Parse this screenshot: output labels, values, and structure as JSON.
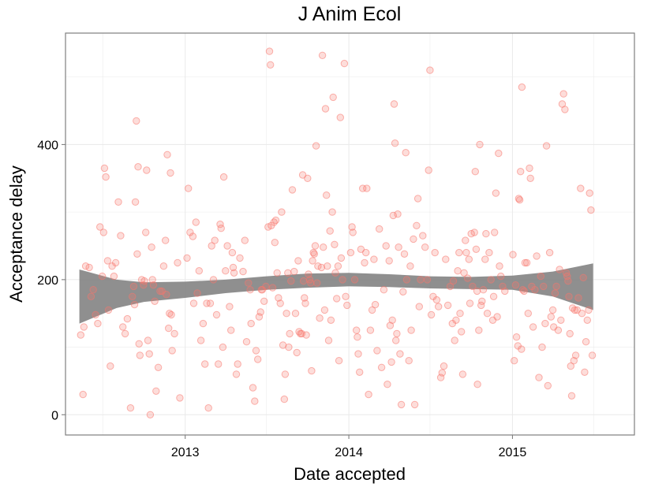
{
  "chart_data": {
    "type": "scatter",
    "title": "J Anim Ecol",
    "xlabel": "Date accepted",
    "ylabel": "Acceptance delay",
    "x_ticks": [
      "2013",
      "2014",
      "2015"
    ],
    "y_ticks": [
      0,
      200,
      400
    ],
    "xlim": [
      "2012-04-09",
      "2015-09-30"
    ],
    "ylim": [
      -30,
      565
    ],
    "grid": true,
    "legend": "none",
    "colors": {
      "points": "#f8766d",
      "band": "#7f7f7f",
      "panel_border": "#7f7f7f",
      "grid": "#ebebeb"
    },
    "smooth_band": {
      "x": [
        "2012-05-10",
        "2012-08-01",
        "2012-10-01",
        "2013-01-01",
        "2013-04-01",
        "2013-07-01",
        "2013-10-01",
        "2014-01-01",
        "2014-04-01",
        "2014-07-01",
        "2014-10-01",
        "2015-01-01",
        "2015-04-01",
        "2015-06-30"
      ],
      "lower": [
        135,
        158,
        167,
        173,
        180,
        185,
        188,
        190,
        189,
        187,
        186,
        185,
        175,
        155
      ],
      "upper": [
        215,
        200,
        196,
        197,
        200,
        205,
        209,
        210,
        208,
        205,
        204,
        206,
        212,
        224
      ]
    },
    "points": [
      [
        "2012-05-13",
        118
      ],
      [
        "2012-05-18",
        30
      ],
      [
        "2012-05-20",
        130
      ],
      [
        "2012-05-24",
        220
      ],
      [
        "2012-06-01",
        218
      ],
      [
        "2012-06-05",
        175
      ],
      [
        "2012-06-10",
        185
      ],
      [
        "2012-06-15",
        148
      ],
      [
        "2012-06-20",
        135
      ],
      [
        "2012-06-25",
        278
      ],
      [
        "2012-06-30",
        205
      ],
      [
        "2012-07-03",
        270
      ],
      [
        "2012-07-05",
        365
      ],
      [
        "2012-07-08",
        352
      ],
      [
        "2012-07-12",
        228
      ],
      [
        "2012-07-14",
        155
      ],
      [
        "2012-07-18",
        72
      ],
      [
        "2012-07-22",
        220
      ],
      [
        "2012-07-26",
        205
      ],
      [
        "2012-07-30",
        225
      ],
      [
        "2012-08-05",
        315
      ],
      [
        "2012-08-10",
        265
      ],
      [
        "2012-08-15",
        130
      ],
      [
        "2012-08-20",
        120
      ],
      [
        "2012-08-25",
        142
      ],
      [
        "2012-09-01",
        10
      ],
      [
        "2012-09-05",
        175
      ],
      [
        "2012-09-08",
        190
      ],
      [
        "2012-09-10",
        163
      ],
      [
        "2012-09-12",
        315
      ],
      [
        "2012-09-14",
        435
      ],
      [
        "2012-09-16",
        238
      ],
      [
        "2012-09-18",
        367
      ],
      [
        "2012-09-20",
        105
      ],
      [
        "2012-09-22",
        88
      ],
      [
        "2012-09-26",
        200
      ],
      [
        "2012-09-30",
        192
      ],
      [
        "2012-10-02",
        198
      ],
      [
        "2012-10-05",
        270
      ],
      [
        "2012-10-07",
        362
      ],
      [
        "2012-10-10",
        110
      ],
      [
        "2012-10-13",
        90
      ],
      [
        "2012-10-15",
        0
      ],
      [
        "2012-10-18",
        248
      ],
      [
        "2012-10-20",
        200
      ],
      [
        "2012-10-22",
        192
      ],
      [
        "2012-10-25",
        168
      ],
      [
        "2012-10-28",
        35
      ],
      [
        "2012-11-02",
        70
      ],
      [
        "2012-11-06",
        183
      ],
      [
        "2012-11-10",
        183
      ],
      [
        "2012-11-14",
        220
      ],
      [
        "2012-11-18",
        258
      ],
      [
        "2012-11-20",
        178
      ],
      [
        "2012-11-22",
        385
      ],
      [
        "2012-11-25",
        128
      ],
      [
        "2012-11-27",
        150
      ],
      [
        "2012-11-29",
        358
      ],
      [
        "2012-12-01",
        148
      ],
      [
        "2012-12-03",
        95
      ],
      [
        "2012-12-08",
        120
      ],
      [
        "2012-12-15",
        225
      ],
      [
        "2012-12-20",
        25
      ],
      [
        "2013-01-05",
        232
      ],
      [
        "2013-01-08",
        335
      ],
      [
        "2013-01-12",
        270
      ],
      [
        "2013-01-18",
        264
      ],
      [
        "2013-01-20",
        165
      ],
      [
        "2013-01-25",
        285
      ],
      [
        "2013-01-28",
        180
      ],
      [
        "2013-02-01",
        213
      ],
      [
        "2013-02-05",
        110
      ],
      [
        "2013-02-10",
        135
      ],
      [
        "2013-02-14",
        75
      ],
      [
        "2013-02-18",
        165
      ],
      [
        "2013-02-22",
        10
      ],
      [
        "2013-02-26",
        165
      ],
      [
        "2013-03-01",
        250
      ],
      [
        "2013-03-05",
        200
      ],
      [
        "2013-03-08",
        258
      ],
      [
        "2013-03-12",
        148
      ],
      [
        "2013-03-16",
        75
      ],
      [
        "2013-03-20",
        282
      ],
      [
        "2013-03-22",
        276
      ],
      [
        "2013-03-26",
        100
      ],
      [
        "2013-03-28",
        352
      ],
      [
        "2013-04-01",
        213
      ],
      [
        "2013-04-05",
        250
      ],
      [
        "2013-04-10",
        160
      ],
      [
        "2013-04-13",
        125
      ],
      [
        "2013-04-16",
        240
      ],
      [
        "2013-04-18",
        218
      ],
      [
        "2013-04-20",
        210
      ],
      [
        "2013-04-25",
        60
      ],
      [
        "2013-04-28",
        75
      ],
      [
        "2013-05-03",
        232
      ],
      [
        "2013-05-10",
        212
      ],
      [
        "2013-05-14",
        258
      ],
      [
        "2013-05-18",
        108
      ],
      [
        "2013-05-22",
        195
      ],
      [
        "2013-05-26",
        185
      ],
      [
        "2013-05-28",
        135
      ],
      [
        "2013-06-01",
        40
      ],
      [
        "2013-06-05",
        20
      ],
      [
        "2013-06-08",
        95
      ],
      [
        "2013-06-12",
        82
      ],
      [
        "2013-06-15",
        145
      ],
      [
        "2013-06-18",
        152
      ],
      [
        "2013-06-20",
        185
      ],
      [
        "2013-06-22",
        185
      ],
      [
        "2013-06-26",
        168
      ],
      [
        "2013-06-30",
        190
      ],
      [
        "2013-07-05",
        278
      ],
      [
        "2013-07-08",
        538
      ],
      [
        "2013-07-10",
        518
      ],
      [
        "2013-07-12",
        280
      ],
      [
        "2013-07-15",
        188
      ],
      [
        "2013-07-18",
        285
      ],
      [
        "2013-07-20",
        255
      ],
      [
        "2013-07-22",
        288
      ],
      [
        "2013-07-25",
        210
      ],
      [
        "2013-07-28",
        173
      ],
      [
        "2013-08-01",
        165
      ],
      [
        "2013-08-04",
        300
      ],
      [
        "2013-08-07",
        103
      ],
      [
        "2013-08-10",
        23
      ],
      [
        "2013-08-12",
        60
      ],
      [
        "2013-08-15",
        150
      ],
      [
        "2013-08-18",
        210
      ],
      [
        "2013-08-20",
        100
      ],
      [
        "2013-08-22",
        120
      ],
      [
        "2013-08-25",
        198
      ],
      [
        "2013-08-28",
        333
      ],
      [
        "2013-09-01",
        212
      ],
      [
        "2013-09-04",
        150
      ],
      [
        "2013-09-07",
        92
      ],
      [
        "2013-09-10",
        228
      ],
      [
        "2013-09-12",
        123
      ],
      [
        "2013-09-15",
        120
      ],
      [
        "2013-09-18",
        120
      ],
      [
        "2013-09-20",
        355
      ],
      [
        "2013-09-22",
        198
      ],
      [
        "2013-09-24",
        173
      ],
      [
        "2013-09-26",
        165
      ],
      [
        "2013-09-28",
        118
      ],
      [
        "2013-10-01",
        350
      ],
      [
        "2013-10-03",
        208
      ],
      [
        "2013-10-06",
        200
      ],
      [
        "2013-10-08",
        195
      ],
      [
        "2013-10-10",
        65
      ],
      [
        "2013-10-12",
        228
      ],
      [
        "2013-10-14",
        240
      ],
      [
        "2013-10-16",
        238
      ],
      [
        "2013-10-18",
        250
      ],
      [
        "2013-10-20",
        398
      ],
      [
        "2013-10-22",
        195
      ],
      [
        "2013-10-24",
        220
      ],
      [
        "2013-10-28",
        143
      ],
      [
        "2013-11-01",
        218
      ],
      [
        "2013-11-03",
        532
      ],
      [
        "2013-11-05",
        248
      ],
      [
        "2013-11-08",
        155
      ],
      [
        "2013-11-10",
        453
      ],
      [
        "2013-11-12",
        325
      ],
      [
        "2013-11-14",
        220
      ],
      [
        "2013-11-17",
        110
      ],
      [
        "2013-11-20",
        272
      ],
      [
        "2013-11-22",
        140
      ],
      [
        "2013-11-25",
        300
      ],
      [
        "2013-11-27",
        470
      ],
      [
        "2013-11-30",
        252
      ],
      [
        "2013-12-02",
        210
      ],
      [
        "2013-12-05",
        172
      ],
      [
        "2013-12-08",
        220
      ],
      [
        "2013-12-10",
        80
      ],
      [
        "2013-12-13",
        440
      ],
      [
        "2013-12-15",
        232
      ],
      [
        "2013-12-18",
        200
      ],
      [
        "2013-12-22",
        520
      ],
      [
        "2013-12-25",
        175
      ],
      [
        "2013-12-28",
        162
      ],
      [
        "2014-01-05",
        240
      ],
      [
        "2014-01-08",
        278
      ],
      [
        "2014-01-10",
        270
      ],
      [
        "2014-01-14",
        200
      ],
      [
        "2014-01-18",
        125
      ],
      [
        "2014-01-20",
        115
      ],
      [
        "2014-01-22",
        90
      ],
      [
        "2014-01-25",
        63
      ],
      [
        "2014-01-28",
        245
      ],
      [
        "2014-02-01",
        335
      ],
      [
        "2014-02-05",
        225
      ],
      [
        "2014-02-08",
        240
      ],
      [
        "2014-02-10",
        335
      ],
      [
        "2014-02-14",
        30
      ],
      [
        "2014-02-18",
        125
      ],
      [
        "2014-02-22",
        155
      ],
      [
        "2014-02-26",
        230
      ],
      [
        "2014-03-01",
        163
      ],
      [
        "2014-03-05",
        95
      ],
      [
        "2014-03-10",
        275
      ],
      [
        "2014-03-15",
        70
      ],
      [
        "2014-03-20",
        185
      ],
      [
        "2014-03-25",
        250
      ],
      [
        "2014-03-28",
        45
      ],
      [
        "2014-04-01",
        228
      ],
      [
        "2014-04-03",
        132
      ],
      [
        "2014-04-06",
        78
      ],
      [
        "2014-04-08",
        140
      ],
      [
        "2014-04-10",
        295
      ],
      [
        "2014-04-12",
        460
      ],
      [
        "2014-04-14",
        402
      ],
      [
        "2014-04-16",
        110
      ],
      [
        "2014-04-18",
        120
      ],
      [
        "2014-04-20",
        297
      ],
      [
        "2014-04-22",
        248
      ],
      [
        "2014-04-25",
        90
      ],
      [
        "2014-04-28",
        15
      ],
      [
        "2014-05-02",
        182
      ],
      [
        "2014-05-05",
        238
      ],
      [
        "2014-05-08",
        388
      ],
      [
        "2014-05-10",
        200
      ],
      [
        "2014-05-15",
        80
      ],
      [
        "2014-05-18",
        220
      ],
      [
        "2014-05-20",
        125
      ],
      [
        "2014-05-25",
        260
      ],
      [
        "2014-05-28",
        15
      ],
      [
        "2014-06-01",
        280
      ],
      [
        "2014-06-04",
        320
      ],
      [
        "2014-06-07",
        160
      ],
      [
        "2014-06-10",
        200
      ],
      [
        "2014-06-15",
        265
      ],
      [
        "2014-06-20",
        248
      ],
      [
        "2014-06-25",
        200
      ],
      [
        "2014-06-28",
        362
      ],
      [
        "2014-07-01",
        510
      ],
      [
        "2014-07-04",
        148
      ],
      [
        "2014-07-08",
        175
      ],
      [
        "2014-07-12",
        240
      ],
      [
        "2014-07-16",
        170
      ],
      [
        "2014-07-20",
        160
      ],
      [
        "2014-07-25",
        55
      ],
      [
        "2014-07-28",
        62
      ],
      [
        "2014-08-01",
        72
      ],
      [
        "2014-08-05",
        230
      ],
      [
        "2014-08-10",
        162
      ],
      [
        "2014-08-15",
        190
      ],
      [
        "2014-08-20",
        135
      ],
      [
        "2014-08-22",
        198
      ],
      [
        "2014-08-25",
        110
      ],
      [
        "2014-08-28",
        140
      ],
      [
        "2014-09-01",
        213
      ],
      [
        "2014-09-04",
        240
      ],
      [
        "2014-09-06",
        150
      ],
      [
        "2014-09-09",
        123
      ],
      [
        "2014-09-12",
        60
      ],
      [
        "2014-09-15",
        210
      ],
      [
        "2014-09-18",
        258
      ],
      [
        "2014-09-20",
        240
      ],
      [
        "2014-09-23",
        202
      ],
      [
        "2014-09-26",
        230
      ],
      [
        "2014-09-28",
        165
      ],
      [
        "2014-10-01",
        268
      ],
      [
        "2014-10-04",
        190
      ],
      [
        "2014-10-08",
        270
      ],
      [
        "2014-10-10",
        360
      ],
      [
        "2014-10-12",
        245
      ],
      [
        "2014-10-14",
        183
      ],
      [
        "2014-10-15",
        45
      ],
      [
        "2014-10-18",
        125
      ],
      [
        "2014-10-20",
        400
      ],
      [
        "2014-10-23",
        162
      ],
      [
        "2014-10-25",
        168
      ],
      [
        "2014-10-28",
        185
      ],
      [
        "2014-11-01",
        230
      ],
      [
        "2014-11-03",
        268
      ],
      [
        "2014-11-06",
        150
      ],
      [
        "2014-11-10",
        240
      ],
      [
        "2014-11-14",
        200
      ],
      [
        "2014-11-18",
        140
      ],
      [
        "2014-11-20",
        175
      ],
      [
        "2014-11-22",
        270
      ],
      [
        "2014-11-25",
        328
      ],
      [
        "2014-11-28",
        145
      ],
      [
        "2014-12-01",
        387
      ],
      [
        "2014-12-03",
        220
      ],
      [
        "2014-12-06",
        205
      ],
      [
        "2014-12-10",
        190
      ],
      [
        "2014-12-15",
        183
      ],
      [
        "2015-01-02",
        237
      ],
      [
        "2015-01-05",
        80
      ],
      [
        "2015-01-08",
        192
      ],
      [
        "2015-01-10",
        115
      ],
      [
        "2015-01-13",
        102
      ],
      [
        "2015-01-15",
        320
      ],
      [
        "2015-01-17",
        318
      ],
      [
        "2015-01-19",
        360
      ],
      [
        "2015-01-21",
        97
      ],
      [
        "2015-01-22",
        485
      ],
      [
        "2015-01-24",
        185
      ],
      [
        "2015-01-27",
        183
      ],
      [
        "2015-01-29",
        225
      ],
      [
        "2015-02-02",
        225
      ],
      [
        "2015-02-05",
        150
      ],
      [
        "2015-02-08",
        365
      ],
      [
        "2015-02-10",
        350
      ],
      [
        "2015-02-13",
        190
      ],
      [
        "2015-02-16",
        130
      ],
      [
        "2015-02-20",
        185
      ],
      [
        "2015-02-24",
        235
      ],
      [
        "2015-03-01",
        55
      ],
      [
        "2015-03-05",
        205
      ],
      [
        "2015-03-08",
        100
      ],
      [
        "2015-03-11",
        190
      ],
      [
        "2015-03-15",
        135
      ],
      [
        "2015-03-18",
        398
      ],
      [
        "2015-03-21",
        43
      ],
      [
        "2015-03-25",
        240
      ],
      [
        "2015-03-28",
        145
      ],
      [
        "2015-04-01",
        155
      ],
      [
        "2015-04-03",
        130
      ],
      [
        "2015-04-06",
        180
      ],
      [
        "2015-04-09",
        190
      ],
      [
        "2015-04-13",
        125
      ],
      [
        "2015-04-16",
        215
      ],
      [
        "2015-04-19",
        140
      ],
      [
        "2015-04-22",
        460
      ],
      [
        "2015-04-25",
        475
      ],
      [
        "2015-04-28",
        452
      ],
      [
        "2015-05-01",
        210
      ],
      [
        "2015-05-03",
        205
      ],
      [
        "2015-05-05",
        198
      ],
      [
        "2015-05-07",
        175
      ],
      [
        "2015-05-09",
        120
      ],
      [
        "2015-05-11",
        72
      ],
      [
        "2015-05-13",
        28
      ],
      [
        "2015-05-15",
        158
      ],
      [
        "2015-05-18",
        80
      ],
      [
        "2015-05-20",
        155
      ],
      [
        "2015-05-22",
        88
      ],
      [
        "2015-05-25",
        155
      ],
      [
        "2015-05-28",
        173
      ],
      [
        "2015-06-02",
        335
      ],
      [
        "2015-06-05",
        150
      ],
      [
        "2015-06-08",
        203
      ],
      [
        "2015-06-11",
        63
      ],
      [
        "2015-06-14",
        108
      ],
      [
        "2015-06-17",
        140
      ],
      [
        "2015-06-20",
        155
      ],
      [
        "2015-06-22",
        328
      ],
      [
        "2015-06-25",
        303
      ],
      [
        "2015-06-28",
        88
      ]
    ]
  }
}
